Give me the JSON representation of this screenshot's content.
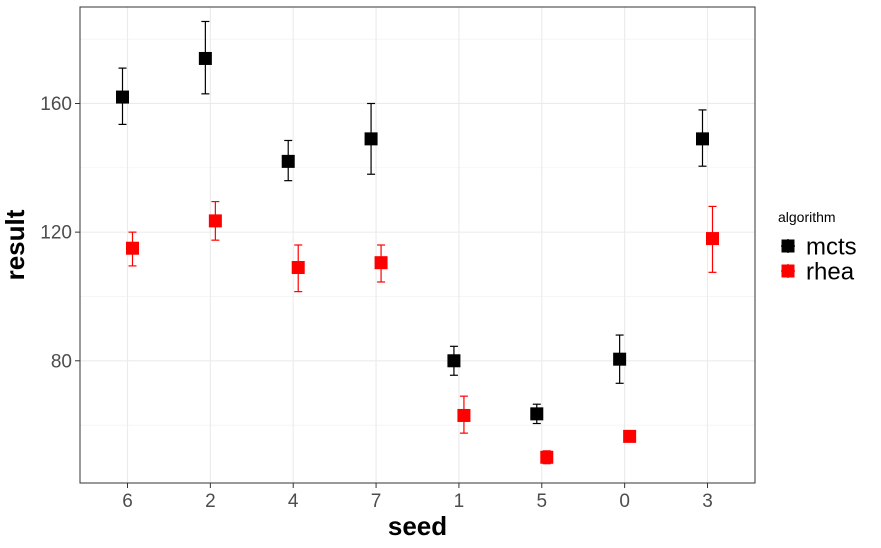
{
  "chart_data": {
    "type": "scatter",
    "xlabel": "seed",
    "ylabel": "result",
    "categories": [
      "6",
      "2",
      "4",
      "7",
      "1",
      "5",
      "0",
      "3"
    ],
    "y_ticks": [
      80,
      120,
      160
    ],
    "ylim": [
      42,
      190
    ],
    "grid": true,
    "legend": {
      "title": "algorithm",
      "position": "right"
    },
    "series": [
      {
        "name": "mcts",
        "color": "#000000",
        "marker": "square",
        "values": [
          162,
          174,
          142,
          149,
          80,
          63.5,
          80.5,
          149
        ],
        "lower": [
          153.5,
          163,
          136,
          138,
          75.5,
          60.5,
          73,
          140.5
        ],
        "upper": [
          171,
          185.5,
          148.5,
          160,
          84.5,
          66.5,
          88,
          158
        ]
      },
      {
        "name": "rhea",
        "color": "#ff0000",
        "marker": "square",
        "values": [
          115,
          123.5,
          109,
          110.5,
          63,
          50,
          56.5,
          118
        ],
        "lower": [
          109.5,
          117.5,
          101.5,
          104.5,
          57.5,
          48,
          56.5,
          107.5
        ],
        "upper": [
          120,
          129.5,
          116,
          116,
          69,
          52,
          56.5,
          128
        ]
      }
    ]
  }
}
